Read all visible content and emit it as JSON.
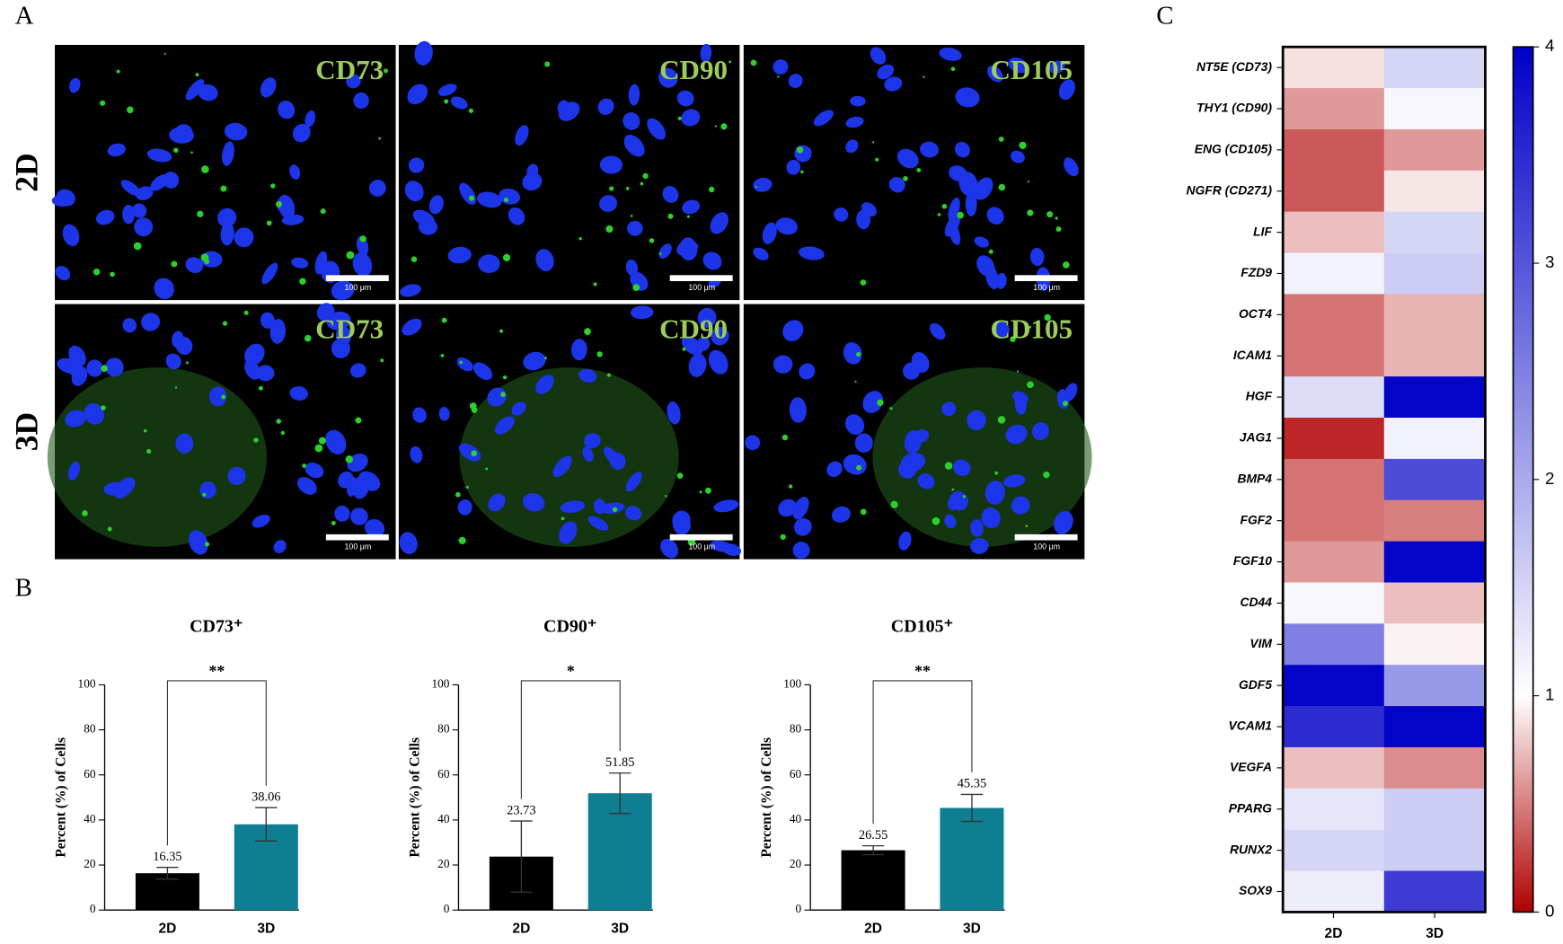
{
  "panel_labels": [
    "A",
    "B",
    "C"
  ],
  "micrographs": {
    "rows": [
      "2D",
      "3D"
    ],
    "markers": [
      "CD73",
      "CD90",
      "CD105"
    ],
    "scale_bar": "100 μm"
  },
  "chart_data": [
    {
      "type": "bar",
      "title": "CD73⁺",
      "y_label": "Percent (%) of Cells",
      "categories": [
        "2D",
        "3D"
      ],
      "values": [
        16.35,
        38.06
      ],
      "errors": [
        2.6,
        7.4
      ],
      "colors": [
        "#000000",
        "#0e7f92"
      ],
      "ylim": [
        0,
        100
      ],
      "yticks": [
        0,
        20,
        40,
        60,
        80,
        100
      ],
      "significance": "**"
    },
    {
      "type": "bar",
      "title": "CD90⁺",
      "y_label": "Percent (%) of Cells",
      "categories": [
        "2D",
        "3D"
      ],
      "values": [
        23.73,
        51.85
      ],
      "errors": [
        15.8,
        9
      ],
      "colors": [
        "#000000",
        "#0e7f92"
      ],
      "ylim": [
        0,
        100
      ],
      "yticks": [
        0,
        20,
        40,
        60,
        80,
        100
      ],
      "significance": "*"
    },
    {
      "type": "bar",
      "title": "CD105⁺",
      "y_label": "Percent (%) of Cells",
      "categories": [
        "2D",
        "3D"
      ],
      "values": [
        26.55,
        45.35
      ],
      "errors": [
        2,
        6
      ],
      "colors": [
        "#000000",
        "#0e7f92"
      ],
      "ylim": [
        0,
        100
      ],
      "yticks": [
        0,
        20,
        40,
        60,
        80,
        100
      ],
      "significance": "**"
    },
    {
      "type": "heatmap",
      "x": [
        "2D",
        "3D"
      ],
      "y": [
        "NT5E (CD73)",
        "THY1 (CD90)",
        "ENG (CD105)",
        "NGFR (CD271)",
        "LIF",
        "FZD9",
        "OCT4",
        "ICAM1",
        "HGF",
        "JAG1",
        "BMP4",
        "FGF2",
        "FGF10",
        "CD44",
        "VIM",
        "GDF5",
        "VCAM1",
        "VEGFA",
        "PPARG",
        "RUNX2",
        "SOX9"
      ],
      "values": [
        [
          0.88,
          1.5
        ],
        [
          0.6,
          1.1
        ],
        [
          0.35,
          0.6
        ],
        [
          0.35,
          0.9
        ],
        [
          0.75,
          1.5
        ],
        [
          1.15,
          1.6
        ],
        [
          0.45,
          0.7
        ],
        [
          0.45,
          0.7
        ],
        [
          1.4,
          3.95
        ],
        [
          0.15,
          1.15
        ],
        [
          0.45,
          3.1
        ],
        [
          0.45,
          0.5
        ],
        [
          0.6,
          3.95
        ],
        [
          1.1,
          0.75
        ],
        [
          2.5,
          0.95
        ],
        [
          3.95,
          2.2
        ],
        [
          3.5,
          3.95
        ],
        [
          0.75,
          0.55
        ],
        [
          1.3,
          1.6
        ],
        [
          1.5,
          1.6
        ],
        [
          1.2,
          3.3
        ]
      ],
      "zlim": [
        0,
        4
      ],
      "zticks": [
        0,
        1,
        2,
        3,
        4
      ],
      "color_stops": [
        {
          "value": 0,
          "color": "#b00000"
        },
        {
          "value": 1,
          "color": "#ffffff"
        },
        {
          "value": 4,
          "color": "#0000c8"
        }
      ]
    }
  ]
}
